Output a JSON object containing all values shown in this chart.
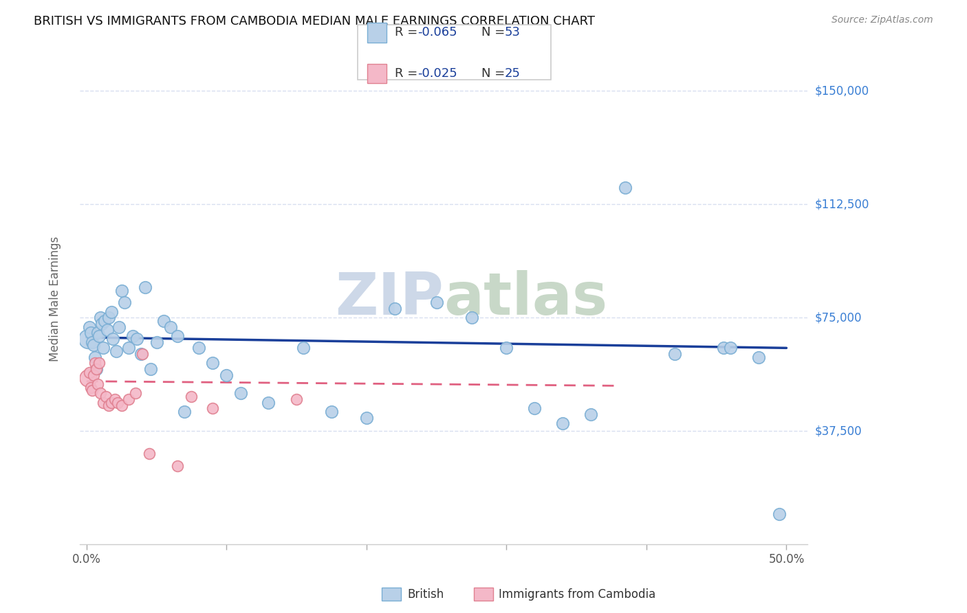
{
  "title": "BRITISH VS IMMIGRANTS FROM CAMBODIA MEDIAN MALE EARNINGS CORRELATION CHART",
  "source": "Source: ZipAtlas.com",
  "ylabel": "Median Male Earnings",
  "ytick_labels": [
    "$37,500",
    "$75,000",
    "$112,500",
    "$150,000"
  ],
  "ytick_values": [
    37500,
    75000,
    112500,
    150000
  ],
  "ymin": 0,
  "ymax": 162500,
  "xmin": -0.005,
  "xmax": 0.515,
  "legend_r_british": "-0.065",
  "legend_n_british": "53",
  "legend_r_cambodia": "-0.025",
  "legend_n_cambodia": "25",
  "british_color": "#b8d0e8",
  "british_edge_color": "#7aaed4",
  "cambodia_color": "#f4b8c8",
  "cambodia_edge_color": "#e08090",
  "british_line_color": "#1a3f9a",
  "cambodia_line_color": "#e06080",
  "grid_color": "#d8dff0",
  "background_color": "#ffffff",
  "title_color": "#111111",
  "right_label_color": "#3a7fd4",
  "watermark_color": "#cdd8e8",
  "british_x": [
    0.001,
    0.002,
    0.003,
    0.004,
    0.005,
    0.006,
    0.007,
    0.008,
    0.009,
    0.01,
    0.011,
    0.012,
    0.013,
    0.015,
    0.016,
    0.018,
    0.019,
    0.021,
    0.023,
    0.025,
    0.027,
    0.03,
    0.033,
    0.036,
    0.039,
    0.042,
    0.046,
    0.05,
    0.055,
    0.06,
    0.065,
    0.07,
    0.08,
    0.09,
    0.1,
    0.11,
    0.13,
    0.155,
    0.175,
    0.2,
    0.22,
    0.25,
    0.275,
    0.3,
    0.32,
    0.34,
    0.36,
    0.385,
    0.42,
    0.455,
    0.46,
    0.48,
    0.495
  ],
  "british_y": [
    68000,
    72000,
    70000,
    67000,
    66000,
    62000,
    58000,
    70000,
    69000,
    75000,
    73000,
    65000,
    74000,
    71000,
    75000,
    77000,
    68000,
    64000,
    72000,
    84000,
    80000,
    65000,
    69000,
    68000,
    63000,
    85000,
    58000,
    67000,
    74000,
    72000,
    69000,
    44000,
    65000,
    60000,
    56000,
    50000,
    47000,
    65000,
    44000,
    42000,
    78000,
    80000,
    75000,
    65000,
    45000,
    40000,
    43000,
    118000,
    63000,
    65000,
    65000,
    62000,
    10000
  ],
  "cambodia_x": [
    0.001,
    0.002,
    0.003,
    0.004,
    0.005,
    0.006,
    0.007,
    0.008,
    0.009,
    0.01,
    0.012,
    0.014,
    0.016,
    0.018,
    0.02,
    0.022,
    0.025,
    0.03,
    0.035,
    0.04,
    0.045,
    0.065,
    0.075,
    0.09,
    0.15
  ],
  "cambodia_y": [
    55000,
    57000,
    52000,
    51000,
    56000,
    60000,
    58000,
    53000,
    60000,
    50000,
    47000,
    49000,
    46000,
    47000,
    48000,
    47000,
    46000,
    48000,
    50000,
    63000,
    30000,
    26000,
    49000,
    45000,
    48000
  ],
  "british_big_indices": [
    0
  ],
  "cambodia_big_indices": [
    0
  ],
  "british_line_x": [
    0.0,
    0.5
  ],
  "british_line_y": [
    68500,
    65000
  ],
  "cambodia_line_x": [
    0.0,
    0.38
  ],
  "cambodia_line_y": [
    54000,
    52500
  ],
  "marker_size_british": 160,
  "marker_size_cambodia": 130,
  "marker_size_big_british": 400,
  "marker_size_big_cambodia": 320
}
